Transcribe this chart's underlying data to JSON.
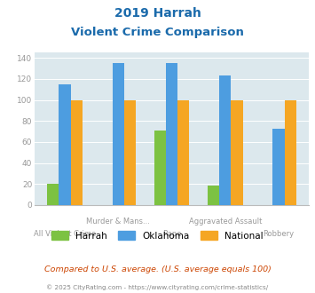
{
  "title_line1": "2019 Harrah",
  "title_line2": "Violent Crime Comparison",
  "cat_top": [
    "",
    "Murder & Mans...",
    "",
    "Aggravated Assault",
    ""
  ],
  "cat_bot": [
    "All Violent Crime",
    "",
    "Rape",
    "",
    "Robbery"
  ],
  "harrah": [
    20,
    0,
    71,
    19,
    0
  ],
  "oklahoma": [
    115,
    135,
    135,
    123,
    73
  ],
  "national": [
    100,
    100,
    100,
    100,
    100
  ],
  "harrah_color": "#7cc242",
  "oklahoma_color": "#4d9de0",
  "national_color": "#f5a623",
  "bg_color": "#dce8ed",
  "title_color": "#1a6aab",
  "axis_color": "#999999",
  "ylim": [
    0,
    145
  ],
  "yticks": [
    0,
    20,
    40,
    60,
    80,
    100,
    120,
    140
  ],
  "footnote1": "Compared to U.S. average. (U.S. average equals 100)",
  "footnote2": "© 2025 CityRating.com - https://www.cityrating.com/crime-statistics/",
  "footnote1_color": "#cc4400",
  "footnote2_color": "#888888",
  "legend_labels": [
    "Harrah",
    "Oklahoma",
    "National"
  ]
}
